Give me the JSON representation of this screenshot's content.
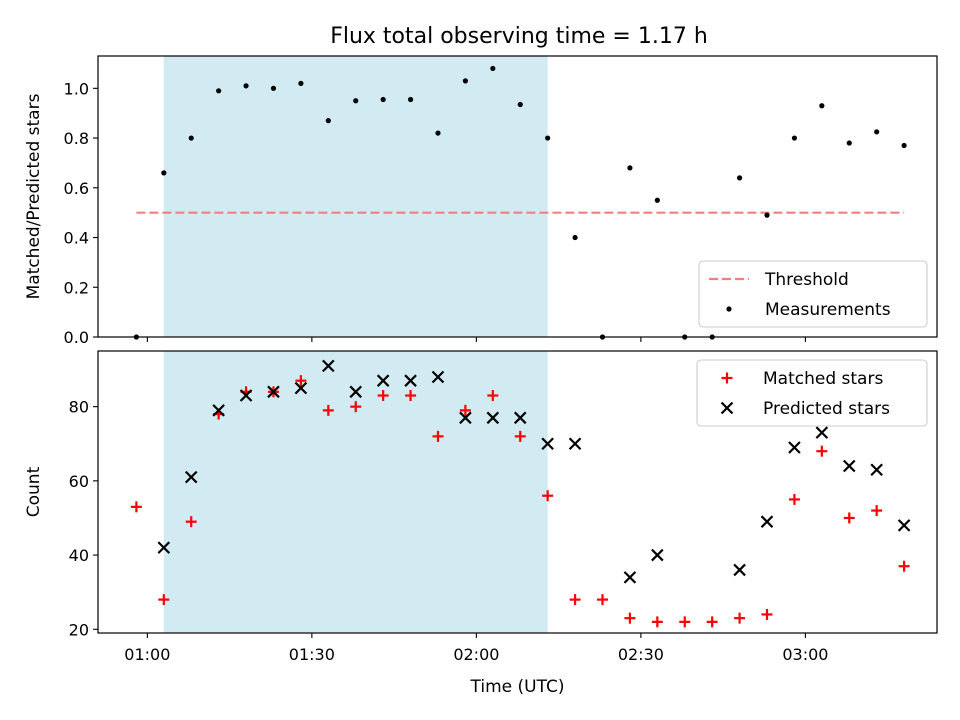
{
  "title": "Flux total observing time = 1.17 h",
  "chart_data": [
    {
      "type": "scatter",
      "panel": "top",
      "ylabel": "Matched/Predicted stars",
      "xlabel": "",
      "x_unit": "minutes",
      "xlim": [
        "00:51",
        "03:24"
      ],
      "ylim": [
        0,
        1.13
      ],
      "yticks": [
        0.0,
        0.2,
        0.4,
        0.6,
        0.8,
        1.0
      ],
      "ytick_labels": [
        "0.0",
        "0.2",
        "0.4",
        "0.6",
        "0.8",
        "1.0"
      ],
      "shaded_span": {
        "start": "01:03",
        "end": "02:13",
        "color": "#add8e6"
      },
      "threshold": {
        "name": "Threshold",
        "value": 0.5,
        "x_start": "00:58",
        "x_end": "03:18",
        "color": "#f08080"
      },
      "series": [
        {
          "name": "Measurements",
          "color": "#000000",
          "points": [
            {
              "x": "00:58",
              "y": 0.0
            },
            {
              "x": "01:03",
              "y": 0.66
            },
            {
              "x": "01:08",
              "y": 0.8
            },
            {
              "x": "01:13",
              "y": 0.99
            },
            {
              "x": "01:18",
              "y": 1.01
            },
            {
              "x": "01:23",
              "y": 1.0
            },
            {
              "x": "01:28",
              "y": 1.02
            },
            {
              "x": "01:33",
              "y": 0.87
            },
            {
              "x": "01:38",
              "y": 0.95
            },
            {
              "x": "01:43",
              "y": 0.955
            },
            {
              "x": "01:48",
              "y": 0.955
            },
            {
              "x": "01:53",
              "y": 0.82
            },
            {
              "x": "01:58",
              "y": 1.03
            },
            {
              "x": "02:03",
              "y": 1.08
            },
            {
              "x": "02:08",
              "y": 0.935
            },
            {
              "x": "02:13",
              "y": 0.8
            },
            {
              "x": "02:18",
              "y": 0.4
            },
            {
              "x": "02:23",
              "y": 0.0
            },
            {
              "x": "02:28",
              "y": 0.68
            },
            {
              "x": "02:33",
              "y": 0.55
            },
            {
              "x": "02:38",
              "y": 0.0
            },
            {
              "x": "02:43",
              "y": 0.0
            },
            {
              "x": "02:48",
              "y": 0.64
            },
            {
              "x": "02:53",
              "y": 0.49
            },
            {
              "x": "02:58",
              "y": 0.8
            },
            {
              "x": "03:03",
              "y": 0.93
            },
            {
              "x": "03:08",
              "y": 0.78
            },
            {
              "x": "03:13",
              "y": 0.825
            },
            {
              "x": "03:18",
              "y": 0.77
            }
          ]
        }
      ],
      "legend": {
        "placement": "lower-right",
        "entries": [
          "Threshold",
          "Measurements"
        ]
      }
    },
    {
      "type": "scatter",
      "panel": "bottom",
      "ylabel": "Count",
      "xlabel": "Time (UTC)",
      "x_unit": "minutes",
      "xlim": [
        "00:51",
        "03:24"
      ],
      "ylim": [
        19,
        95
      ],
      "yticks": [
        20,
        40,
        60,
        80
      ],
      "ytick_labels": [
        "20",
        "40",
        "60",
        "80"
      ],
      "xticks": [
        "01:00",
        "01:30",
        "02:00",
        "02:30",
        "03:00"
      ],
      "xtick_labels": [
        "01:00",
        "01:30",
        "02:00",
        "02:30",
        "03:00"
      ],
      "shaded_span": {
        "start": "01:03",
        "end": "02:13",
        "color": "#add8e6"
      },
      "series": [
        {
          "name": "Matched stars",
          "marker": "plus",
          "color": "#ff0000",
          "points": [
            {
              "x": "00:58",
              "y": 53
            },
            {
              "x": "01:03",
              "y": 28
            },
            {
              "x": "01:08",
              "y": 49
            },
            {
              "x": "01:13",
              "y": 78
            },
            {
              "x": "01:18",
              "y": 84
            },
            {
              "x": "01:23",
              "y": 84
            },
            {
              "x": "01:28",
              "y": 87
            },
            {
              "x": "01:33",
              "y": 79
            },
            {
              "x": "01:38",
              "y": 80
            },
            {
              "x": "01:43",
              "y": 83
            },
            {
              "x": "01:48",
              "y": 83
            },
            {
              "x": "01:53",
              "y": 72
            },
            {
              "x": "01:58",
              "y": 79
            },
            {
              "x": "02:03",
              "y": 83
            },
            {
              "x": "02:08",
              "y": 72
            },
            {
              "x": "02:13",
              "y": 56
            },
            {
              "x": "02:18",
              "y": 28
            },
            {
              "x": "02:23",
              "y": 28
            },
            {
              "x": "02:28",
              "y": 23
            },
            {
              "x": "02:33",
              "y": 22
            },
            {
              "x": "02:38",
              "y": 22
            },
            {
              "x": "02:43",
              "y": 22
            },
            {
              "x": "02:48",
              "y": 23
            },
            {
              "x": "02:53",
              "y": 24
            },
            {
              "x": "02:58",
              "y": 55
            },
            {
              "x": "03:03",
              "y": 68
            },
            {
              "x": "03:08",
              "y": 50
            },
            {
              "x": "03:13",
              "y": 52
            },
            {
              "x": "03:18",
              "y": 37
            }
          ]
        },
        {
          "name": "Predicted stars",
          "marker": "x",
          "color": "#000000",
          "points": [
            {
              "x": "01:03",
              "y": 42
            },
            {
              "x": "01:08",
              "y": 61
            },
            {
              "x": "01:13",
              "y": 79
            },
            {
              "x": "01:18",
              "y": 83
            },
            {
              "x": "01:23",
              "y": 84
            },
            {
              "x": "01:28",
              "y": 85
            },
            {
              "x": "01:33",
              "y": 91
            },
            {
              "x": "01:38",
              "y": 84
            },
            {
              "x": "01:43",
              "y": 87
            },
            {
              "x": "01:48",
              "y": 87
            },
            {
              "x": "01:53",
              "y": 88
            },
            {
              "x": "01:58",
              "y": 77
            },
            {
              "x": "02:03",
              "y": 77
            },
            {
              "x": "02:08",
              "y": 77
            },
            {
              "x": "02:13",
              "y": 70
            },
            {
              "x": "02:18",
              "y": 70
            },
            {
              "x": "02:28",
              "y": 34
            },
            {
              "x": "02:33",
              "y": 40
            },
            {
              "x": "02:48",
              "y": 36
            },
            {
              "x": "02:53",
              "y": 49
            },
            {
              "x": "02:58",
              "y": 69
            },
            {
              "x": "03:03",
              "y": 73
            },
            {
              "x": "03:08",
              "y": 64
            },
            {
              "x": "03:13",
              "y": 63
            },
            {
              "x": "03:18",
              "y": 48
            }
          ]
        }
      ],
      "legend": {
        "placement": "top-right",
        "entries": [
          "Matched stars",
          "Predicted stars"
        ]
      }
    }
  ]
}
